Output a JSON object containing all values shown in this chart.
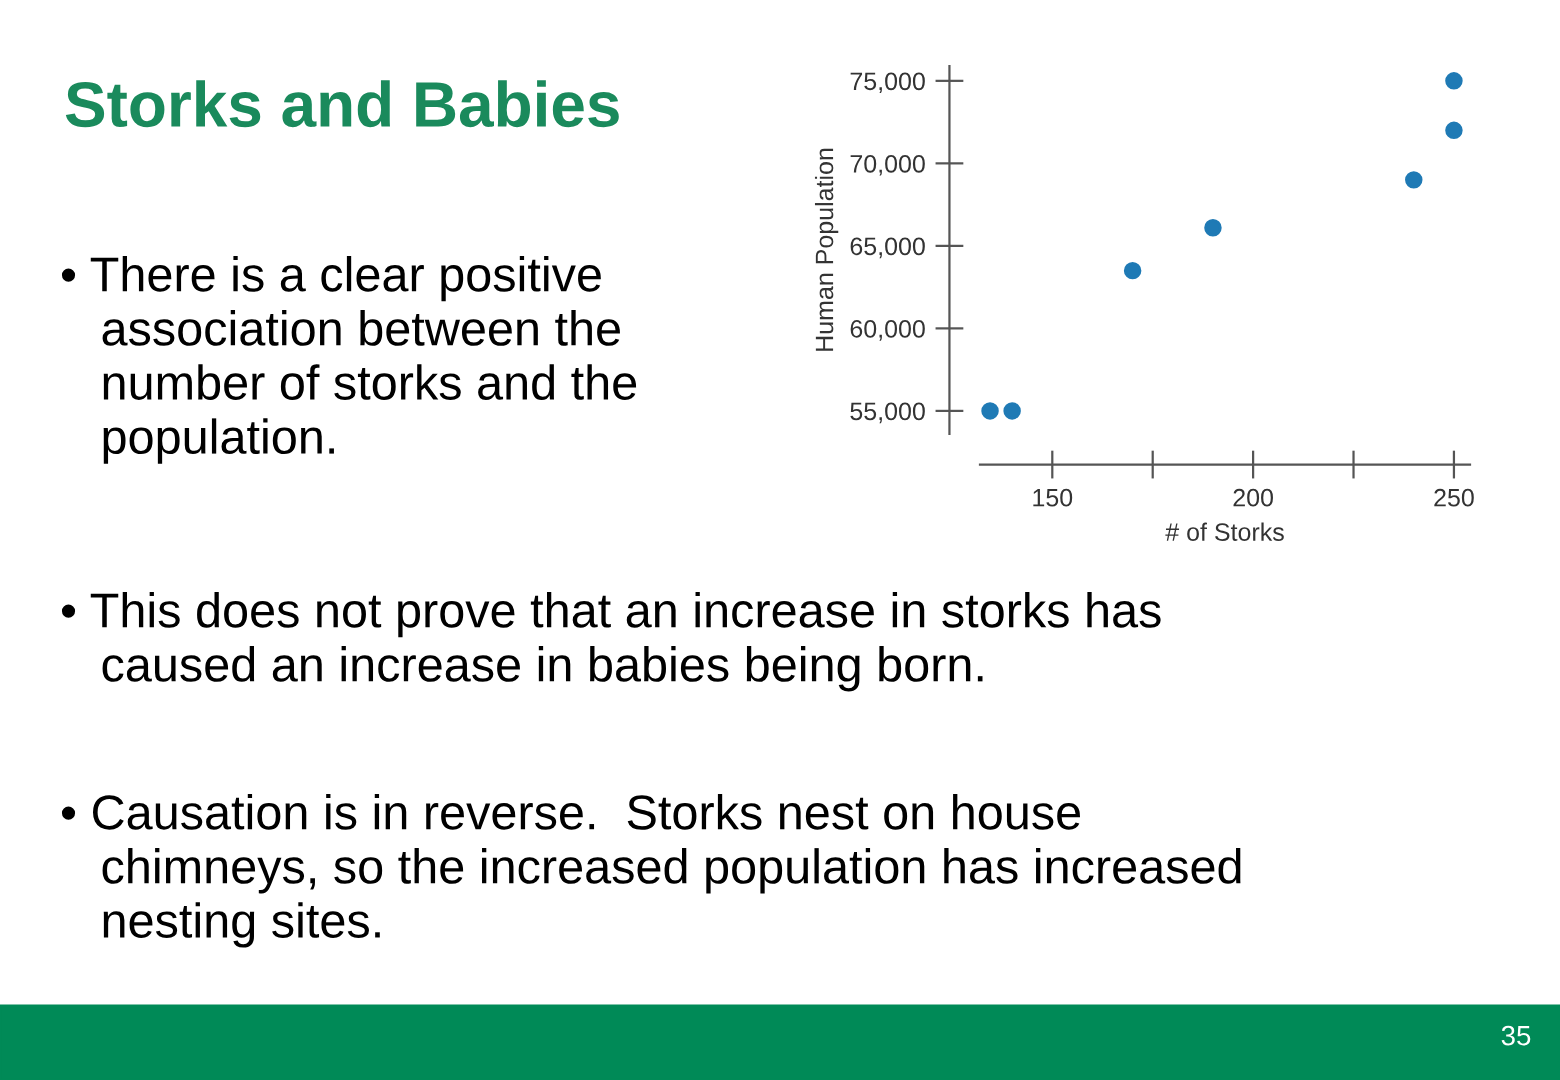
{
  "chart_data": {
    "type": "scatter",
    "title": "Storks and Babies",
    "xlabel": "# of Storks",
    "ylabel": "Human Population",
    "x": [
      134.5,
      140,
      170,
      190,
      240,
      250,
      250
    ],
    "values": [
      55000,
      55000,
      63500,
      66100,
      69000,
      72000,
      75000
    ],
    "color": "#1f7ab5",
    "marker": "circle",
    "grid": false,
    "legend": false,
    "xlim": [
      132,
      254
    ],
    "ylim": [
      53600,
      75900
    ],
    "xticks": [
      150,
      {
        "value": 175,
        "label": null
      },
      200,
      {
        "value": 225,
        "label": null
      },
      250
    ],
    "yticks": [
      {
        "value": 55000,
        "label": "55,000"
      },
      {
        "value": 60000,
        "label": "60,000"
      },
      {
        "value": 65000,
        "label": "65,000"
      },
      {
        "value": 70000,
        "label": "70,000"
      },
      {
        "value": 75000,
        "label": "75,000"
      }
    ],
    "annotations": [
      "• There is a clear positive\n   association between the\n   number of storks and the\n   population.",
      "• This does not prove that an increase in storks has\n   caused an increase in babies being born.",
      "• Causation is in reverse.  Storks nest on house\n   chimneys, so the increased population has increased\n   nesting sites.",
      "35"
    ]
  }
}
